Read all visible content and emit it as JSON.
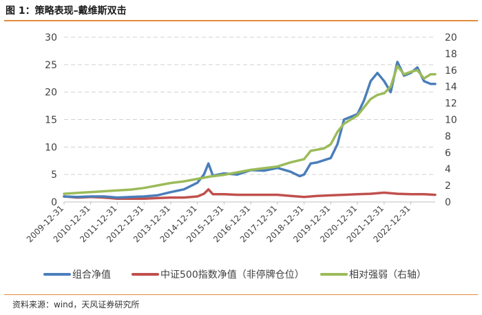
{
  "title": "图 1：策略表现–戴维斯双击",
  "source": "资料来源：wind，天风证券研究所",
  "chart_data": {
    "type": "line",
    "y_left": {
      "lim": [
        0,
        30
      ],
      "ticks": [
        "0",
        "5",
        "10",
        "15",
        "20",
        "25",
        "30"
      ]
    },
    "y_right": {
      "lim": [
        0,
        20
      ],
      "ticks": [
        "0",
        "2",
        "4",
        "6",
        "8",
        "10",
        "12",
        "14",
        "16",
        "18",
        "20"
      ]
    },
    "x_range": [
      "2009-12-31",
      "2023-11-30"
    ],
    "x_ticks": [
      "2009-12-31",
      "2010-12-31",
      "2011-12-31",
      "2012-12-31",
      "2013-12-31",
      "2014-12-31",
      "2015-12-31",
      "2016-12-31",
      "2017-12-31",
      "2018-12-31",
      "2019-12-31",
      "2020-12-31",
      "2021-12-31",
      "2022-12-31"
    ],
    "grid": "horizontal-dashed",
    "legend_position": "bottom",
    "series": [
      {
        "name": "组合净值",
        "axis": "left",
        "color": "#4a7ebb",
        "points": [
          [
            "2009-12-31",
            1.0
          ],
          [
            "2010-06-30",
            0.9
          ],
          [
            "2010-12-31",
            1.0
          ],
          [
            "2011-06-30",
            1.0
          ],
          [
            "2011-12-31",
            0.8
          ],
          [
            "2012-06-30",
            0.9
          ],
          [
            "2012-12-31",
            1.0
          ],
          [
            "2013-06-30",
            1.2
          ],
          [
            "2013-12-31",
            1.8
          ],
          [
            "2014-06-30",
            2.3
          ],
          [
            "2014-12-31",
            3.5
          ],
          [
            "2015-03-31",
            5.0
          ],
          [
            "2015-05-31",
            7.0
          ],
          [
            "2015-07-31",
            4.8
          ],
          [
            "2015-12-31",
            5.2
          ],
          [
            "2016-06-30",
            5.0
          ],
          [
            "2016-12-31",
            5.8
          ],
          [
            "2017-06-30",
            5.7
          ],
          [
            "2017-12-31",
            6.2
          ],
          [
            "2018-06-30",
            5.5
          ],
          [
            "2018-10-31",
            4.7
          ],
          [
            "2018-12-31",
            5.0
          ],
          [
            "2019-03-31",
            7.0
          ],
          [
            "2019-06-30",
            7.2
          ],
          [
            "2019-12-31",
            8.0
          ],
          [
            "2020-03-31",
            10.5
          ],
          [
            "2020-06-30",
            15.0
          ],
          [
            "2020-09-30",
            15.5
          ],
          [
            "2020-12-31",
            16.0
          ],
          [
            "2021-03-31",
            18.5
          ],
          [
            "2021-06-30",
            22.0
          ],
          [
            "2021-09-30",
            23.5
          ],
          [
            "2021-12-31",
            22.0
          ],
          [
            "2022-03-31",
            20.0
          ],
          [
            "2022-06-30",
            25.5
          ],
          [
            "2022-09-30",
            23.0
          ],
          [
            "2022-12-31",
            23.5
          ],
          [
            "2023-03-31",
            24.5
          ],
          [
            "2023-06-30",
            22.0
          ],
          [
            "2023-09-30",
            21.5
          ],
          [
            "2023-11-30",
            21.5
          ]
        ]
      },
      {
        "name": "中证500指数净值（非停牌仓位）",
        "axis": "left",
        "color": "#c0504d",
        "points": [
          [
            "2009-12-31",
            1.0
          ],
          [
            "2010-06-30",
            0.8
          ],
          [
            "2010-12-31",
            0.9
          ],
          [
            "2011-06-30",
            0.8
          ],
          [
            "2011-12-31",
            0.6
          ],
          [
            "2012-06-30",
            0.6
          ],
          [
            "2012-12-31",
            0.6
          ],
          [
            "2013-06-30",
            0.7
          ],
          [
            "2013-12-31",
            0.8
          ],
          [
            "2014-06-30",
            0.8
          ],
          [
            "2014-12-31",
            1.0
          ],
          [
            "2015-03-31",
            1.5
          ],
          [
            "2015-05-31",
            2.3
          ],
          [
            "2015-07-31",
            1.4
          ],
          [
            "2015-12-31",
            1.4
          ],
          [
            "2016-06-30",
            1.3
          ],
          [
            "2016-12-31",
            1.3
          ],
          [
            "2017-06-30",
            1.3
          ],
          [
            "2017-12-31",
            1.3
          ],
          [
            "2018-06-30",
            1.1
          ],
          [
            "2018-12-31",
            0.9
          ],
          [
            "2019-06-30",
            1.1
          ],
          [
            "2019-12-31",
            1.2
          ],
          [
            "2020-06-30",
            1.3
          ],
          [
            "2020-12-31",
            1.4
          ],
          [
            "2021-06-30",
            1.5
          ],
          [
            "2021-12-31",
            1.7
          ],
          [
            "2022-06-30",
            1.5
          ],
          [
            "2022-12-31",
            1.4
          ],
          [
            "2023-06-30",
            1.4
          ],
          [
            "2023-11-30",
            1.3
          ]
        ]
      },
      {
        "name": "相对强弱（右轴）",
        "axis": "right",
        "color": "#9bbb59",
        "points": [
          [
            "2009-12-31",
            1.0
          ],
          [
            "2010-06-30",
            1.1
          ],
          [
            "2010-12-31",
            1.2
          ],
          [
            "2011-06-30",
            1.3
          ],
          [
            "2011-12-31",
            1.4
          ],
          [
            "2012-06-30",
            1.5
          ],
          [
            "2012-12-31",
            1.7
          ],
          [
            "2013-06-30",
            2.0
          ],
          [
            "2013-12-31",
            2.3
          ],
          [
            "2014-06-30",
            2.5
          ],
          [
            "2014-12-31",
            2.8
          ],
          [
            "2015-06-30",
            3.1
          ],
          [
            "2015-12-31",
            3.3
          ],
          [
            "2016-06-30",
            3.6
          ],
          [
            "2016-12-31",
            3.9
          ],
          [
            "2017-06-30",
            4.1
          ],
          [
            "2017-12-31",
            4.3
          ],
          [
            "2018-06-30",
            4.8
          ],
          [
            "2018-12-31",
            5.2
          ],
          [
            "2019-03-31",
            6.2
          ],
          [
            "2019-09-30",
            6.5
          ],
          [
            "2019-12-31",
            7.0
          ],
          [
            "2020-03-31",
            8.5
          ],
          [
            "2020-06-30",
            9.5
          ],
          [
            "2020-09-30",
            10.0
          ],
          [
            "2020-12-31",
            10.5
          ],
          [
            "2021-03-31",
            11.5
          ],
          [
            "2021-06-30",
            12.5
          ],
          [
            "2021-09-30",
            13.0
          ],
          [
            "2021-12-31",
            13.2
          ],
          [
            "2022-03-31",
            14.0
          ],
          [
            "2022-06-30",
            16.5
          ],
          [
            "2022-09-30",
            15.5
          ],
          [
            "2022-12-31",
            15.8
          ],
          [
            "2023-03-31",
            16.0
          ],
          [
            "2023-06-30",
            15.0
          ],
          [
            "2023-09-30",
            15.5
          ],
          [
            "2023-11-30",
            15.5
          ]
        ]
      }
    ]
  }
}
